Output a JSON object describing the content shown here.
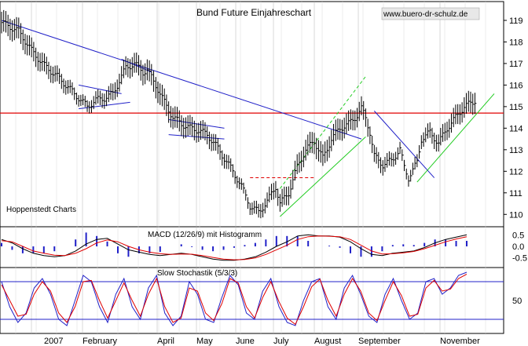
{
  "chart_data": [
    {
      "type": "ohlc",
      "title": "Bund Future Einjahreschart",
      "watermark": "www.buero-dr-schulz.de",
      "source_label": "Hoppenstedt Charts",
      "x_months": [
        "2007",
        "February",
        "April",
        "May",
        "June",
        "July",
        "August",
        "September",
        "November"
      ],
      "y_ticks": [
        110,
        111,
        112,
        113,
        114,
        115,
        116,
        117,
        118,
        119
      ],
      "ylim": [
        109.5,
        119.8
      ],
      "resistance_level": 114.7,
      "colors": {
        "price": "#000000",
        "resistance": "#e00000",
        "downtrend": "#2020c8",
        "channel": "#22cc22",
        "grid": "#b0b0b0"
      },
      "price_points": [
        [
          0,
          118.9
        ],
        [
          8,
          118.5
        ],
        [
          14,
          117.6
        ],
        [
          20,
          116.9
        ],
        [
          26,
          116.4
        ],
        [
          30,
          116.0
        ],
        [
          34,
          115.6
        ],
        [
          38,
          115.2
        ],
        [
          40,
          115.0
        ],
        [
          44,
          115.3
        ],
        [
          48,
          115.4
        ],
        [
          52,
          115.6
        ],
        [
          56,
          116.4
        ],
        [
          58,
          116.8
        ],
        [
          62,
          117.0
        ],
        [
          66,
          116.6
        ],
        [
          68,
          116.7
        ],
        [
          72,
          116.0
        ],
        [
          76,
          115.2
        ],
        [
          80,
          114.5
        ],
        [
          84,
          114.2
        ],
        [
          88,
          114.0
        ],
        [
          92,
          113.9
        ],
        [
          96,
          113.7
        ],
        [
          100,
          113.2
        ],
        [
          104,
          112.6
        ],
        [
          108,
          112.0
        ],
        [
          112,
          111.3
        ],
        [
          116,
          110.4
        ],
        [
          120,
          110.1
        ],
        [
          124,
          110.6
        ],
        [
          128,
          111.3
        ],
        [
          130,
          110.5
        ],
        [
          134,
          111.0
        ],
        [
          138,
          112.2
        ],
        [
          142,
          113.0
        ],
        [
          146,
          113.4
        ],
        [
          150,
          112.6
        ],
        [
          154,
          113.5
        ],
        [
          158,
          114.0
        ],
        [
          162,
          114.2
        ],
        [
          166,
          114.6
        ],
        [
          168,
          114.9
        ],
        [
          170,
          114.5
        ],
        [
          172,
          113.8
        ],
        [
          174,
          112.7
        ],
        [
          178,
          112.3
        ],
        [
          182,
          112.5
        ],
        [
          186,
          113.0
        ],
        [
          188,
          112.2
        ],
        [
          190,
          111.7
        ],
        [
          194,
          112.4
        ],
        [
          196,
          113.5
        ],
        [
          200,
          113.8
        ],
        [
          204,
          113.3
        ],
        [
          208,
          114.0
        ],
        [
          212,
          114.5
        ],
        [
          216,
          115.0
        ],
        [
          220,
          115.2
        ],
        [
          222,
          115.4
        ]
      ],
      "trendlines": [
        {
          "name": "downtrend",
          "color": "#2020c8",
          "style": "solid",
          "points": [
            [
              0,
              119.0
            ],
            [
              168,
              113.5
            ]
          ]
        },
        {
          "name": "channel-low",
          "color": "#22cc22",
          "style": "solid",
          "points": [
            [
              130,
              109.9
            ],
            [
              170,
              113.6
            ]
          ]
        },
        {
          "name": "channel-high",
          "color": "#22cc22",
          "style": "dashed",
          "points": [
            [
              130,
              111.2
            ],
            [
              170,
              116.4
            ]
          ]
        },
        {
          "name": "triangle-top",
          "color": "#2020c8",
          "style": "solid",
          "points": [
            [
              36,
              116.0
            ],
            [
              56,
              115.6
            ]
          ]
        },
        {
          "name": "triangle-bottom",
          "color": "#2020c8",
          "style": "solid",
          "points": [
            [
              36,
              114.9
            ],
            [
              60,
              115.2
            ]
          ]
        },
        {
          "name": "flag-top",
          "color": "#2020c8",
          "style": "solid",
          "points": [
            [
              78,
              114.4
            ],
            [
              104,
              114.0
            ]
          ]
        },
        {
          "name": "flag-bottom",
          "color": "#2020c8",
          "style": "solid",
          "points": [
            [
              78,
              113.7
            ],
            [
              104,
              113.5
            ]
          ]
        },
        {
          "name": "sep-down",
          "color": "#2020c8",
          "style": "solid",
          "points": [
            [
              174,
              114.8
            ],
            [
              202,
              111.7
            ]
          ]
        },
        {
          "name": "nov-up",
          "color": "#22cc22",
          "style": "solid",
          "points": [
            [
              194,
              111.5
            ],
            [
              230,
              115.6
            ]
          ]
        },
        {
          "name": "june-red",
          "color": "#e00000",
          "style": "dashed",
          "points": [
            [
              116,
              111.7
            ],
            [
              146,
              111.7
            ]
          ]
        },
        {
          "name": "top-triangle-blue",
          "color": "#2020c8",
          "style": "solid",
          "points": [
            [
              56,
              117.2
            ],
            [
              70,
              116.6
            ]
          ]
        }
      ]
    },
    {
      "type": "line",
      "title": "MACD (12/26/9) mit Histogramm",
      "y_ticks": [
        0.5,
        0.0,
        -0.5
      ],
      "ylim": [
        -0.85,
        0.75
      ],
      "series": [
        {
          "color": "#000000",
          "values": [
            0.3,
            0.15,
            -0.1,
            -0.3,
            -0.4,
            -0.45,
            -0.4,
            -0.2,
            0.1,
            0.3,
            0.35,
            0.1,
            -0.15,
            -0.25,
            -0.35,
            -0.4,
            -0.35,
            -0.3,
            -0.35,
            -0.45,
            -0.55,
            -0.6,
            -0.6,
            -0.55,
            -0.45,
            -0.25,
            0.0,
            0.2,
            0.45,
            0.5,
            0.45,
            0.45,
            0.4,
            0.2,
            -0.1,
            -0.35,
            -0.4,
            -0.3,
            -0.25,
            -0.2,
            -0.05,
            0.15,
            0.3,
            0.4,
            0.5
          ]
        },
        {
          "color": "#e00000",
          "values": [
            0.25,
            0.2,
            0.0,
            -0.2,
            -0.3,
            -0.38,
            -0.4,
            -0.3,
            -0.1,
            0.15,
            0.28,
            0.2,
            0.0,
            -0.15,
            -0.25,
            -0.32,
            -0.35,
            -0.33,
            -0.34,
            -0.4,
            -0.48,
            -0.55,
            -0.58,
            -0.57,
            -0.5,
            -0.35,
            -0.15,
            0.05,
            0.3,
            0.42,
            0.45,
            0.44,
            0.42,
            0.3,
            0.05,
            -0.2,
            -0.33,
            -0.32,
            -0.28,
            -0.22,
            -0.1,
            0.05,
            0.2,
            0.32,
            0.42
          ]
        }
      ]
    },
    {
      "type": "line",
      "title": "Slow Stochastik (5/3/3)",
      "y_ticks": [
        50
      ],
      "ylim": [
        0,
        100
      ],
      "levels": [
        80,
        20
      ],
      "series": [
        {
          "color": "#2020c8",
          "values": [
            80,
            40,
            15,
            30,
            70,
            85,
            60,
            20,
            10,
            50,
            90,
            80,
            40,
            15,
            60,
            85,
            40,
            20,
            70,
            90,
            30,
            10,
            25,
            80,
            60,
            20,
            15,
            55,
            90,
            75,
            30,
            20,
            65,
            85,
            40,
            15,
            10,
            50,
            80,
            85,
            40,
            20,
            70,
            90,
            60,
            25,
            15,
            60,
            85,
            50,
            20,
            30,
            80,
            85,
            60,
            70,
            90,
            95
          ]
        },
        {
          "color": "#e00000",
          "values": [
            75,
            50,
            25,
            28,
            60,
            80,
            65,
            30,
            15,
            40,
            80,
            82,
            50,
            22,
            50,
            78,
            50,
            25,
            60,
            85,
            40,
            15,
            22,
            70,
            65,
            30,
            18,
            45,
            85,
            78,
            40,
            22,
            55,
            80,
            48,
            22,
            12,
            40,
            72,
            84,
            50,
            25,
            60,
            85,
            65,
            30,
            18,
            50,
            80,
            58,
            25,
            28,
            70,
            82,
            65,
            68,
            85,
            92
          ]
        }
      ]
    }
  ]
}
